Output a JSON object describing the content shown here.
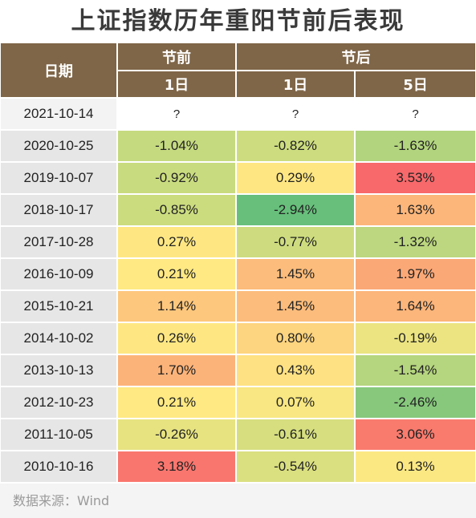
{
  "title": "上证指数历年重阳节前后表现",
  "header": {
    "date_label": "日期",
    "before_label": "节前",
    "after_label": "节后",
    "sub_before_1d": "1日",
    "sub_after_1d": "1日",
    "sub_after_5d": "5日"
  },
  "rows": [
    {
      "date": "2021-10-14",
      "before_1d": "?",
      "after_1d": "?",
      "after_5d": "?"
    },
    {
      "date": "2020-10-25",
      "before_1d": "-1.04%",
      "after_1d": "-0.82%",
      "after_5d": "-1.63%"
    },
    {
      "date": "2019-10-07",
      "before_1d": "-0.92%",
      "after_1d": "0.29%",
      "after_5d": "3.53%"
    },
    {
      "date": "2018-10-17",
      "before_1d": "-0.85%",
      "after_1d": "-2.94%",
      "after_5d": "1.63%"
    },
    {
      "date": "2017-10-28",
      "before_1d": "0.27%",
      "after_1d": "-0.77%",
      "after_5d": "-1.32%"
    },
    {
      "date": "2016-10-09",
      "before_1d": "0.21%",
      "after_1d": "1.45%",
      "after_5d": "1.97%"
    },
    {
      "date": "2015-10-21",
      "before_1d": "1.14%",
      "after_1d": "1.45%",
      "after_5d": "1.64%"
    },
    {
      "date": "2014-10-02",
      "before_1d": "0.26%",
      "after_1d": "0.80%",
      "after_5d": "-0.19%"
    },
    {
      "date": "2013-10-13",
      "before_1d": "1.70%",
      "after_1d": "0.43%",
      "after_5d": "-1.54%"
    },
    {
      "date": "2012-10-23",
      "before_1d": "0.21%",
      "after_1d": "0.07%",
      "after_5d": "-2.46%"
    },
    {
      "date": "2011-10-05",
      "before_1d": "-0.26%",
      "after_1d": "-0.61%",
      "after_5d": "3.06%"
    },
    {
      "date": "2010-10-16",
      "before_1d": "3.18%",
      "after_1d": "-0.54%",
      "after_5d": "0.13%"
    }
  ],
  "colors": {
    "header_bg": "#7f6648",
    "scale": [
      "#63be7b",
      "#a6d17e",
      "#cddc7f",
      "#fee983",
      "#fcb77a",
      "#f8696b"
    ]
  },
  "source": "数据来源：Wind"
}
